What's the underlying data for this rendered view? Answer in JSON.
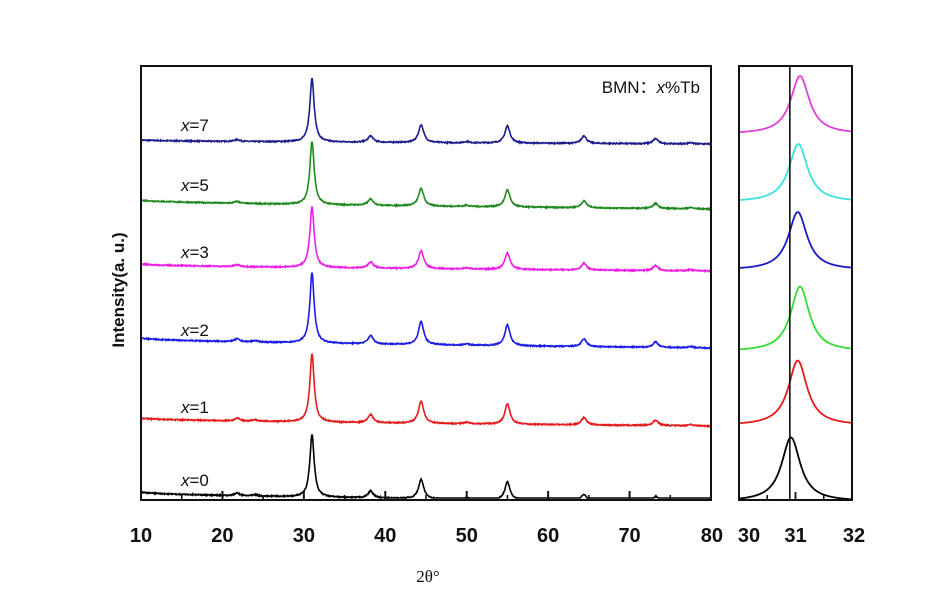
{
  "chart_data": [
    {
      "type": "line",
      "title": "",
      "annotation": {
        "prefix": "BMN：",
        "variable": "x",
        "suffix": "%Tb"
      },
      "xlabel": "2θ°",
      "ylabel": "Intensity(a. u.)",
      "xlim": [
        10,
        80
      ],
      "x_major_ticks": [
        10,
        20,
        30,
        40,
        50,
        60,
        70,
        80
      ],
      "x_minor_ticks": [
        15,
        25,
        35,
        45,
        55,
        65,
        75
      ],
      "x_tick_labels": [
        "10",
        "20",
        "30",
        "40",
        "50",
        "60",
        "70",
        "80"
      ],
      "y_ticks": "none (stacked, arbitrary units)",
      "grid": false,
      "peak_positions": [
        21.8,
        24.0,
        31.0,
        38.2,
        44.4,
        50.0,
        55.0,
        64.4,
        73.2,
        77.5
      ],
      "series": [
        {
          "name": "x=7",
          "label_var": "x",
          "label_val": "=7",
          "color": "#1c1c8c",
          "offset": 6,
          "peak_heights": [
            0.03,
            0.0,
            1.0,
            0.1,
            0.28,
            0.02,
            0.27,
            0.12,
            0.08,
            0.02
          ]
        },
        {
          "name": "x=5",
          "label_var": "x",
          "label_val": "=5",
          "color": "#1e8a1e",
          "offset": 5,
          "peak_heights": [
            0.03,
            0.0,
            1.0,
            0.1,
            0.28,
            0.02,
            0.27,
            0.11,
            0.08,
            0.02
          ]
        },
        {
          "name": "x=3",
          "label_var": "x",
          "label_val": "=3",
          "color": "#ee1ee6",
          "offset": 4,
          "peak_heights": [
            0.03,
            0.0,
            0.98,
            0.1,
            0.29,
            0.02,
            0.27,
            0.11,
            0.08,
            0.02
          ]
        },
        {
          "name": "x=2",
          "label_var": "x",
          "label_val": "=2",
          "color": "#1a1ae6",
          "offset": 3,
          "peak_heights": [
            0.04,
            0.02,
            1.0,
            0.12,
            0.33,
            0.02,
            0.3,
            0.11,
            0.08,
            0.02
          ]
        },
        {
          "name": "x=1",
          "label_var": "x",
          "label_val": "=1",
          "color": "#e61a1a",
          "offset": 2,
          "peak_heights": [
            0.04,
            0.02,
            1.0,
            0.12,
            0.33,
            0.02,
            0.3,
            0.11,
            0.08,
            0.02
          ]
        },
        {
          "name": "x=0",
          "label_var": "x",
          "label_val": "=0",
          "color": "#000000",
          "offset": 1,
          "peak_heights": [
            0.04,
            0.02,
            0.98,
            0.11,
            0.3,
            0.02,
            0.28,
            0.1,
            0.08,
            0.02
          ]
        }
      ]
    },
    {
      "type": "line",
      "title": "",
      "xlim": [
        30,
        32
      ],
      "x_major_ticks": [
        30,
        31,
        32
      ],
      "x_minor_ticks": [
        30.5,
        31.5
      ],
      "x_tick_labels": [
        "30",
        "31",
        "32"
      ],
      "reference_line_x": 30.9,
      "series": [
        {
          "name": "x=7",
          "color": "#e040d8",
          "peak_center": 31.08
        },
        {
          "name": "x=5",
          "color": "#3ee0e0",
          "peak_center": 31.05
        },
        {
          "name": "x=3",
          "color": "#1a1ac8",
          "peak_center": 31.04
        },
        {
          "name": "x=2",
          "color": "#33dd33",
          "peak_center": 31.08
        },
        {
          "name": "x=1",
          "color": "#e61a1a",
          "peak_center": 31.04
        },
        {
          "name": "x=0",
          "color": "#000000",
          "peak_center": 30.92
        }
      ]
    }
  ]
}
